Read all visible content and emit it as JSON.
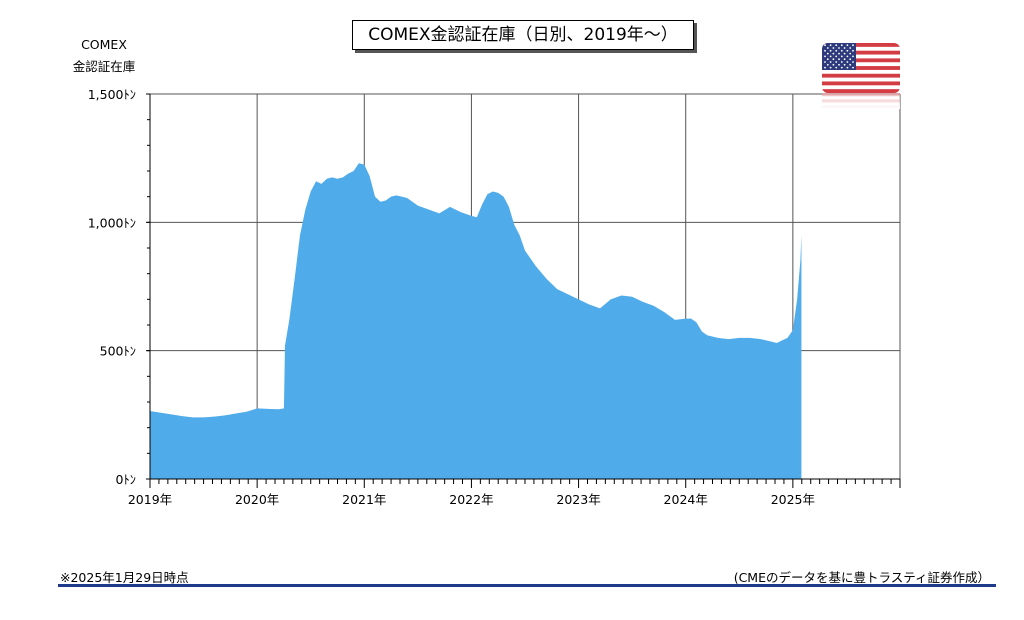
{
  "chart_data": {
    "type": "area",
    "title": "COMEX金認証在庫（日別、2019年～）",
    "ylabel": [
      "COMEX",
      "金認証在庫"
    ],
    "xlabel": "",
    "ylim": [
      0,
      1500
    ],
    "yticks": [
      0,
      500,
      1000,
      1500
    ],
    "ytick_labels": [
      "0ﾄﾝ",
      "500ﾄﾝ",
      "1,000ﾄﾝ",
      "1,500ﾄﾝ"
    ],
    "xlim": [
      2019.0,
      2026.0
    ],
    "xticks": [
      2019,
      2020,
      2021,
      2022,
      2023,
      2024,
      2025
    ],
    "xtick_labels": [
      "2019年",
      "2020年",
      "2021年",
      "2022年",
      "2023年",
      "2024年",
      "2025年"
    ],
    "grid": true,
    "fill_color": "#4fabea",
    "x": [
      2019.0,
      2019.1,
      2019.2,
      2019.3,
      2019.4,
      2019.5,
      2019.6,
      2019.7,
      2019.8,
      2019.9,
      2020.0,
      2020.1,
      2020.2,
      2020.25,
      2020.26,
      2020.3,
      2020.35,
      2020.4,
      2020.45,
      2020.5,
      2020.55,
      2020.6,
      2020.65,
      2020.7,
      2020.75,
      2020.8,
      2020.85,
      2020.9,
      2020.95,
      2021.0,
      2021.05,
      2021.1,
      2021.15,
      2021.2,
      2021.25,
      2021.3,
      2021.4,
      2021.5,
      2021.6,
      2021.7,
      2021.8,
      2021.9,
      2022.0,
      2022.05,
      2022.1,
      2022.15,
      2022.2,
      2022.25,
      2022.3,
      2022.35,
      2022.4,
      2022.45,
      2022.5,
      2022.6,
      2022.7,
      2022.8,
      2022.9,
      2023.0,
      2023.1,
      2023.2,
      2023.3,
      2023.4,
      2023.5,
      2023.6,
      2023.7,
      2023.8,
      2023.9,
      2024.0,
      2024.05,
      2024.1,
      2024.15,
      2024.2,
      2024.3,
      2024.4,
      2024.5,
      2024.6,
      2024.7,
      2024.8,
      2024.85,
      2024.9,
      2024.95,
      2025.0,
      2025.04,
      2025.07,
      2025.08
    ],
    "values": [
      265,
      258,
      252,
      245,
      240,
      240,
      243,
      248,
      255,
      262,
      275,
      273,
      272,
      275,
      520,
      620,
      780,
      950,
      1050,
      1120,
      1160,
      1150,
      1170,
      1175,
      1170,
      1175,
      1190,
      1200,
      1230,
      1225,
      1180,
      1100,
      1080,
      1085,
      1100,
      1105,
      1095,
      1065,
      1050,
      1035,
      1060,
      1040,
      1025,
      1020,
      1070,
      1110,
      1120,
      1115,
      1100,
      1060,
      990,
      950,
      890,
      830,
      780,
      740,
      720,
      700,
      680,
      665,
      700,
      715,
      710,
      690,
      675,
      650,
      620,
      625,
      625,
      610,
      575,
      560,
      550,
      545,
      550,
      550,
      545,
      535,
      530,
      540,
      550,
      580,
      700,
      850,
      950
    ]
  },
  "note": "※2025年1月29日時点",
  "credit": "(CMEのデータを基に豊トラスティ証券作成）",
  "flag": "us-flag-icon"
}
